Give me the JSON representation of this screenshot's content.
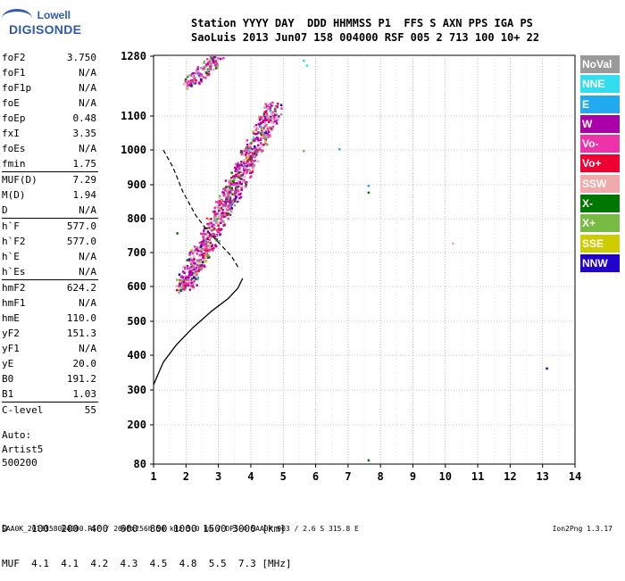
{
  "logo": {
    "line1": "Lowell",
    "line2": "DIGISONDE"
  },
  "header": {
    "row1": "Station YYYY DAY  DDD HHMMSS P1  FFS S AXN PPS IGA PS",
    "row2": "SaoLuis 2013 Jun07 158 004000 RSF 005 2 713 100 10+ 22"
  },
  "params": [
    {
      "k": "foF2",
      "v": "3.750"
    },
    {
      "k": "foF1",
      "v": "N/A"
    },
    {
      "k": "foF1p",
      "v": "N/A"
    },
    {
      "k": "foE",
      "v": "N/A"
    },
    {
      "k": "foEp",
      "v": "0.48"
    },
    {
      "k": "fxI",
      "v": "3.35"
    },
    {
      "k": "foEs",
      "v": "N/A"
    },
    {
      "k": "fmin",
      "v": "1.75"
    },
    {
      "k": "MUF(D)",
      "v": "7.29"
    },
    {
      "k": "M(D)",
      "v": "1.94"
    },
    {
      "k": "D",
      "v": "N/A"
    },
    {
      "k": "h`F",
      "v": "577.0"
    },
    {
      "k": "h`F2",
      "v": "577.0"
    },
    {
      "k": "h`E",
      "v": "N/A"
    },
    {
      "k": "h`Es",
      "v": "N/A"
    },
    {
      "k": "hmF2",
      "v": "624.2"
    },
    {
      "k": "hmF1",
      "v": "N/A"
    },
    {
      "k": "hmE",
      "v": "110.0"
    },
    {
      "k": "yF2",
      "v": "151.3"
    },
    {
      "k": "yF1",
      "v": "N/A"
    },
    {
      "k": "yE",
      "v": "20.0"
    },
    {
      "k": "B0",
      "v": "191.2"
    },
    {
      "k": "B1",
      "v": "1.03"
    },
    {
      "k": "C-level",
      "v": "55"
    }
  ],
  "auto": {
    "line1": "Auto:",
    "line2": "Artist5",
    "line3": "500200"
  },
  "muf_table": {
    "row1": "D    100  200  400  600  800 1000 1500 3000 [km]",
    "row2": "MUF  4.1  4.1  4.2  4.3  4.5  4.8  5.5  7.3 [MHz]"
  },
  "footer": {
    "left": "SAA0K_2013158004000.RSF / 260fx256h 50 kHz 5.0 km / DPS-4 SAA0K 903 / 2.6 S 315.8 E",
    "right": "Ion2Png 1.3.17"
  },
  "legend": [
    {
      "label": "NoVal",
      "color": "#9a9a9a"
    },
    {
      "label": "NNE",
      "color": "#33ddee"
    },
    {
      "label": "E",
      "color": "#22aaee"
    },
    {
      "label": "W",
      "color": "#aa00aa"
    },
    {
      "label": "Vo-",
      "color": "#ee33aa"
    },
    {
      "label": "Vo+",
      "color": "#ee0033"
    },
    {
      "label": "SSW",
      "color": "#f0aaaa"
    },
    {
      "label": "X-",
      "color": "#007700"
    },
    {
      "label": "X+",
      "color": "#77bb44"
    },
    {
      "label": "SSE",
      "color": "#cccc00"
    },
    {
      "label": "NNW",
      "color": "#2200cc"
    }
  ],
  "chart_data": {
    "type": "scatter",
    "xlim": [
      1,
      14
    ],
    "ylim": [
      80,
      1280
    ],
    "x_ticks": [
      1,
      2,
      3,
      4,
      5,
      6,
      7,
      8,
      9,
      10,
      11,
      12,
      13,
      14
    ],
    "y_ticks": [
      80,
      200,
      300,
      400,
      500,
      600,
      700,
      800,
      900,
      1000,
      1100,
      1280
    ],
    "grid": true,
    "profile_line": [
      [
        1.0,
        315
      ],
      [
        1.3,
        380
      ],
      [
        1.7,
        430
      ],
      [
        2.2,
        480
      ],
      [
        2.8,
        530
      ],
      [
        3.3,
        565
      ],
      [
        3.6,
        595
      ],
      [
        3.75,
        624
      ]
    ],
    "dashed_profile": [
      [
        1.3,
        1000
      ],
      [
        1.6,
        950
      ],
      [
        1.9,
        880
      ],
      [
        2.3,
        810
      ],
      [
        2.7,
        760
      ],
      [
        3.1,
        720
      ],
      [
        3.4,
        690
      ],
      [
        3.65,
        650
      ]
    ],
    "traces": [
      {
        "x0": 1.9,
        "y0": 600,
        "x1": 4.7,
        "y1": 1130,
        "width": 0.55
      },
      {
        "x0": 2.0,
        "y0": 1200,
        "x1": 3.0,
        "y1": 1280,
        "width": 0.35
      }
    ],
    "scatter_points": [
      [
        5.6,
        1270
      ],
      [
        5.7,
        1255
      ],
      [
        6.7,
        1005
      ],
      [
        5.6,
        1000
      ],
      [
        7.6,
        900
      ],
      [
        7.6,
        880
      ],
      [
        10.2,
        730
      ],
      [
        13.1,
        365
      ],
      [
        7.6,
        95
      ],
      [
        1.7,
        760
      ]
    ]
  }
}
